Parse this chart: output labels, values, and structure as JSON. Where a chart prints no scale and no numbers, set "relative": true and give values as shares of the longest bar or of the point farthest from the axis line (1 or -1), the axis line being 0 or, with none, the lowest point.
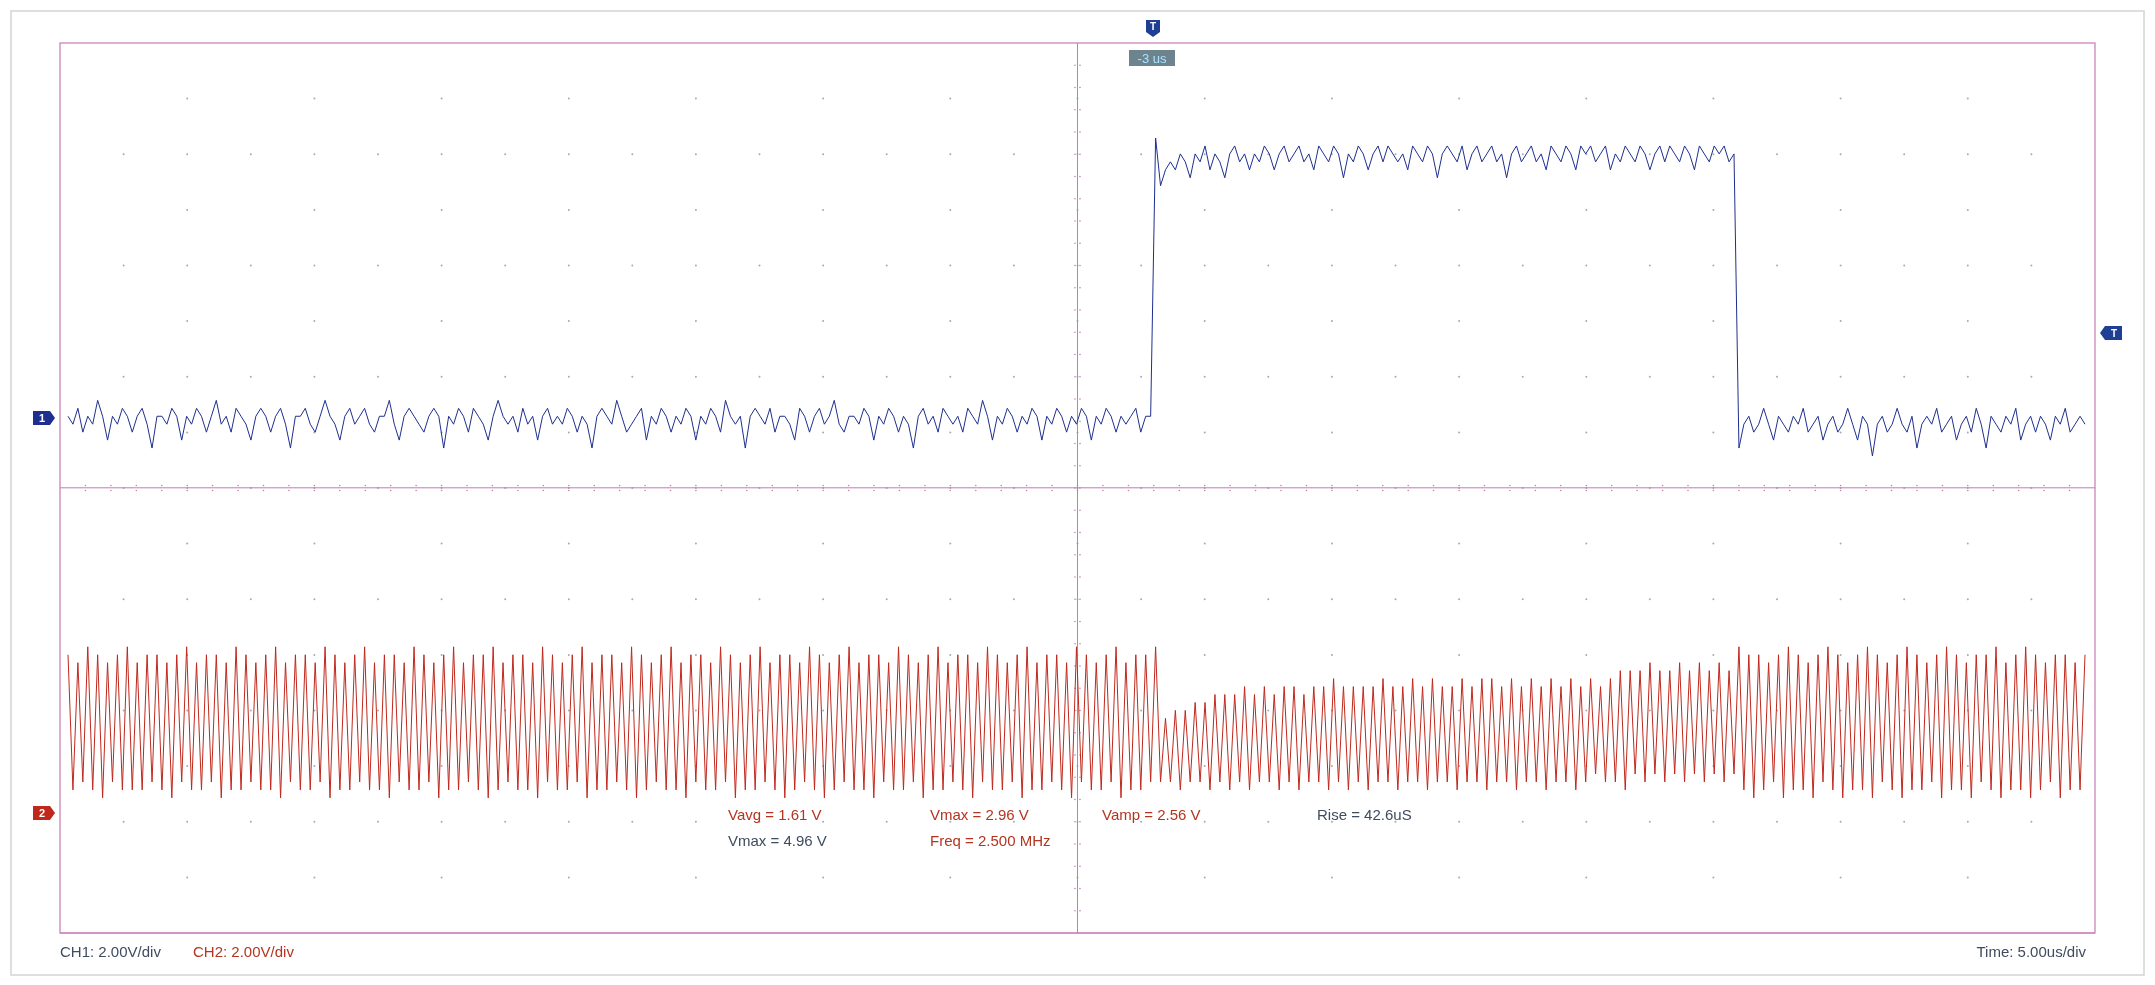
{
  "chart_data": {
    "type": "line",
    "relative": true,
    "marker": "none",
    "line_style": "solid",
    "ref_lines": [
      {
        "axis": "y",
        "value": 0.56,
        "color": "#c77ab6"
      }
    ],
    "annotations": [
      "T",
      "-3 us",
      "T",
      "Vavg = 1.61 V",
      "Vmax = 2.96 V",
      "Vamp = 2.56 V",
      "Rise = 42.6uS",
      "Vmax = 4.96 V",
      "Freq = 2.500 MHz",
      "CH1: 2.00V/div",
      "CH2: 2.00V/div",
      "Time: 5.00us/div"
    ],
    "categories": [
      null,
      null,
      null,
      null,
      null,
      null,
      null,
      null,
      null,
      null,
      null,
      null,
      null,
      null,
      null,
      null,
      null,
      null,
      null,
      null,
      null,
      null,
      null,
      null,
      null,
      null,
      null,
      null,
      null,
      null,
      null,
      null,
      null,
      null,
      null,
      null,
      null,
      null,
      null,
      null,
      null,
      null,
      null,
      null,
      null,
      null,
      null,
      null,
      null,
      null,
      null,
      null,
      null,
      null,
      null,
      null,
      null,
      null,
      null,
      null,
      null,
      null,
      null,
      null,
      null,
      null,
      null,
      null,
      null,
      null,
      null,
      null,
      null,
      null,
      null,
      null,
      null,
      null,
      null,
      null,
      null,
      null,
      null,
      null,
      null,
      null,
      null,
      null,
      null,
      null,
      null,
      null,
      null,
      null,
      null,
      null,
      null,
      null,
      null,
      null,
      null,
      null,
      null,
      null,
      null,
      null,
      null,
      null,
      null,
      null,
      null,
      null,
      null,
      null,
      null,
      null,
      null,
      null,
      null,
      null,
      null,
      null,
      null,
      null,
      null,
      null,
      null,
      null,
      null,
      null,
      null,
      null,
      null,
      null,
      null,
      null,
      null,
      null,
      null,
      null,
      null,
      null,
      null,
      null,
      null,
      null,
      null,
      null,
      null,
      null,
      null,
      null,
      null,
      null,
      null,
      null,
      null,
      null,
      null,
      null,
      null,
      null,
      null,
      null,
      null,
      null,
      null,
      null,
      null,
      null,
      null,
      null,
      null,
      null,
      null,
      null,
      null,
      null,
      null,
      null,
      null,
      null,
      null,
      null,
      null,
      null,
      null,
      null,
      null,
      null,
      null,
      null,
      null,
      null,
      null,
      null,
      null,
      null,
      null,
      null,
      null,
      null,
      null,
      null,
      null,
      null,
      null,
      null,
      null,
      null,
      null,
      null,
      null,
      null,
      null,
      null,
      null,
      null,
      null,
      null,
      null,
      null,
      null,
      null,
      null,
      null,
      null,
      null,
      null,
      null,
      null,
      null,
      null,
      null,
      null,
      null,
      null,
      null,
      null,
      null,
      null,
      null,
      null,
      null,
      null,
      null,
      null,
      null,
      null,
      null,
      null,
      null,
      null,
      null,
      null,
      null,
      null,
      null,
      null,
      null,
      null,
      null,
      null,
      null,
      null,
      null,
      null,
      null,
      null,
      null,
      null,
      null,
      null,
      null,
      null,
      null,
      null,
      null,
      null,
      null,
      null,
      null,
      null,
      null,
      null,
      null,
      null,
      null,
      null,
      null,
      null,
      null,
      null,
      null,
      null,
      null,
      null,
      null,
      null,
      null,
      null,
      null,
      null,
      null,
      null,
      null,
      null,
      null,
      null,
      null,
      null,
      null,
      null,
      null,
      null,
      null,
      null,
      null,
      null,
      null,
      null,
      null,
      null,
      null,
      null,
      null,
      null,
      null,
      null,
      null,
      null,
      null,
      null,
      null,
      null,
      null,
      null,
      null,
      null,
      null,
      null,
      null,
      null,
      null,
      null,
      null,
      null,
      null,
      null,
      null,
      null,
      null,
      null,
      null,
      null,
      null,
      null,
      null,
      null,
      null,
      null,
      null,
      null,
      null,
      null,
      null,
      null,
      null,
      null,
      null,
      null,
      null,
      null,
      null,
      null,
      null,
      null,
      null,
      null,
      null,
      null,
      null,
      null,
      null,
      null,
      null,
      null,
      null,
      null,
      null,
      null,
      null,
      null,
      null,
      null,
      null,
      null,
      null,
      null,
      null,
      null,
      null,
      null,
      null,
      null,
      null,
      null,
      null,
      null
    ],
    "series": [
      {
        "name": "1",
        "color": "#1e2f8f",
        "values": [
          0.65,
          0.64,
          0.66,
          0.63,
          0.65,
          0.64,
          0.67,
          0.65,
          0.62,
          0.65,
          0.64,
          0.66,
          0.65,
          0.63,
          0.65,
          0.66,
          0.64,
          0.61,
          0.65,
          0.65,
          0.64,
          0.66,
          0.65,
          0.62,
          0.65,
          0.64,
          0.66,
          0.65,
          0.63,
          0.65,
          0.67,
          0.64,
          0.65,
          0.63,
          0.66,
          0.65,
          0.64,
          0.62,
          0.65,
          0.66,
          0.65,
          0.63,
          0.65,
          0.66,
          0.64,
          0.61,
          0.65,
          0.65,
          0.66,
          0.64,
          0.63,
          0.65,
          0.67,
          0.65,
          0.64,
          0.62,
          0.65,
          0.66,
          0.64,
          0.65,
          0.66,
          0.64,
          0.63,
          0.65,
          0.65,
          0.67,
          0.64,
          0.62,
          0.65,
          0.66,
          0.65,
          0.64,
          0.63,
          0.65,
          0.66,
          0.65,
          0.61,
          0.65,
          0.64,
          0.66,
          0.65,
          0.63,
          0.66,
          0.65,
          0.64,
          0.62,
          0.65,
          0.67,
          0.65,
          0.64,
          0.65,
          0.63,
          0.66,
          0.64,
          0.65,
          0.62,
          0.65,
          0.66,
          0.64,
          0.65,
          0.64,
          0.66,
          0.65,
          0.63,
          0.65,
          0.64,
          0.61,
          0.65,
          0.66,
          0.65,
          0.64,
          0.67,
          0.65,
          0.63,
          0.64,
          0.65,
          0.66,
          0.62,
          0.65,
          0.64,
          0.66,
          0.65,
          0.63,
          0.65,
          0.64,
          0.66,
          0.65,
          0.62,
          0.65,
          0.64,
          0.66,
          0.65,
          0.63,
          0.67,
          0.65,
          0.64,
          0.65,
          0.61,
          0.65,
          0.66,
          0.65,
          0.64,
          0.66,
          0.63,
          0.65,
          0.65,
          0.64,
          0.62,
          0.66,
          0.65,
          0.63,
          0.65,
          0.66,
          0.64,
          0.65,
          0.67,
          0.64,
          0.63,
          0.65,
          0.65,
          0.64,
          0.66,
          0.65,
          0.62,
          0.65,
          0.64,
          0.66,
          0.65,
          0.63,
          0.65,
          0.64,
          0.61,
          0.65,
          0.66,
          0.64,
          0.65,
          0.63,
          0.66,
          0.65,
          0.64,
          0.65,
          0.63,
          0.66,
          0.65,
          0.64,
          0.67,
          0.65,
          0.62,
          0.65,
          0.64,
          0.66,
          0.65,
          0.63,
          0.65,
          0.64,
          0.66,
          0.65,
          0.62,
          0.65,
          0.64,
          0.66,
          0.65,
          0.63,
          0.65,
          0.64,
          0.66,
          0.65,
          0.62,
          0.65,
          0.64,
          0.66,
          0.65,
          0.63,
          0.65,
          0.64,
          0.65,
          0.66,
          0.63,
          0.65,
          0.65,
          1.0,
          0.94,
          0.96,
          0.97,
          0.96,
          0.98,
          0.97,
          0.95,
          0.98,
          0.97,
          0.99,
          0.96,
          0.98,
          0.97,
          0.95,
          0.98,
          0.99,
          0.97,
          0.98,
          0.96,
          0.98,
          0.97,
          0.99,
          0.98,
          0.96,
          0.98,
          0.99,
          0.97,
          0.98,
          0.99,
          0.97,
          0.98,
          0.96,
          0.99,
          0.98,
          0.97,
          0.99,
          0.98,
          0.95,
          0.98,
          0.97,
          0.99,
          0.98,
          0.96,
          0.98,
          0.99,
          0.97,
          0.99,
          0.98,
          0.97,
          0.98,
          0.96,
          0.99,
          0.98,
          0.97,
          0.99,
          0.98,
          0.95,
          0.98,
          0.99,
          0.98,
          0.97,
          0.99,
          0.96,
          0.98,
          0.99,
          0.97,
          0.98,
          0.99,
          0.97,
          0.98,
          0.95,
          0.98,
          0.99,
          0.97,
          0.98,
          0.99,
          0.97,
          0.98,
          0.96,
          0.99,
          0.98,
          0.97,
          0.99,
          0.98,
          0.96,
          0.99,
          0.98,
          0.99,
          0.97,
          0.98,
          0.99,
          0.96,
          0.98,
          0.97,
          0.99,
          0.98,
          0.97,
          0.99,
          0.98,
          0.96,
          0.98,
          0.99,
          0.97,
          0.99,
          0.98,
          0.97,
          0.99,
          0.98,
          0.96,
          0.99,
          0.98,
          0.97,
          0.99,
          0.98,
          0.99,
          0.97,
          0.98,
          0.61,
          0.64,
          0.65,
          0.63,
          0.64,
          0.66,
          0.64,
          0.62,
          0.65,
          0.64,
          0.63,
          0.65,
          0.64,
          0.66,
          0.63,
          0.64,
          0.65,
          0.62,
          0.64,
          0.65,
          0.63,
          0.64,
          0.66,
          0.64,
          0.62,
          0.65,
          0.64,
          0.6,
          0.64,
          0.65,
          0.63,
          0.64,
          0.66,
          0.64,
          0.63,
          0.65,
          0.61,
          0.64,
          0.65,
          0.64,
          0.66,
          0.63,
          0.64,
          0.65,
          0.62,
          0.64,
          0.65,
          0.63,
          0.66,
          0.64,
          0.61,
          0.65,
          0.64,
          0.63,
          0.65,
          0.64,
          0.66,
          0.62,
          0.64,
          0.65,
          0.63,
          0.65,
          0.64,
          0.62,
          0.65,
          0.64,
          0.66,
          0.63,
          0.64,
          0.65,
          0.64
        ]
      },
      {
        "name": "2",
        "color": "#c0281c",
        "values": [
          0.35,
          0.18,
          0.34,
          0.19,
          0.36,
          0.18,
          0.35,
          0.17,
          0.34,
          0.19,
          0.35,
          0.18,
          0.36,
          0.18,
          0.34,
          0.18,
          0.35,
          0.19,
          0.35,
          0.18,
          0.34,
          0.17,
          0.35,
          0.19,
          0.36,
          0.18,
          0.34,
          0.18,
          0.35,
          0.19,
          0.35,
          0.17,
          0.34,
          0.18,
          0.36,
          0.18,
          0.35,
          0.19,
          0.34,
          0.18,
          0.35,
          0.18,
          0.36,
          0.17,
          0.34,
          0.19,
          0.35,
          0.18,
          0.35,
          0.18,
          0.34,
          0.19,
          0.36,
          0.17,
          0.35,
          0.18,
          0.34,
          0.18,
          0.35,
          0.19,
          0.36,
          0.18,
          0.34,
          0.18,
          0.35,
          0.17,
          0.35,
          0.19,
          0.34,
          0.18,
          0.36,
          0.18,
          0.35,
          0.19,
          0.34,
          0.17,
          0.35,
          0.18,
          0.36,
          0.18,
          0.34,
          0.19,
          0.35,
          0.18,
          0.35,
          0.17,
          0.36,
          0.18,
          0.34,
          0.19,
          0.35,
          0.18,
          0.35,
          0.18,
          0.34,
          0.17,
          0.36,
          0.19,
          0.35,
          0.18,
          0.34,
          0.18,
          0.35,
          0.19,
          0.36,
          0.17,
          0.34,
          0.18,
          0.35,
          0.18,
          0.35,
          0.19,
          0.34,
          0.18,
          0.36,
          0.17,
          0.35,
          0.18,
          0.34,
          0.19,
          0.35,
          0.18,
          0.36,
          0.18,
          0.34,
          0.17,
          0.35,
          0.19,
          0.35,
          0.18,
          0.34,
          0.18,
          0.36,
          0.19,
          0.35,
          0.17,
          0.34,
          0.18,
          0.35,
          0.18,
          0.36,
          0.19,
          0.34,
          0.18,
          0.35,
          0.17,
          0.35,
          0.18,
          0.34,
          0.19,
          0.36,
          0.18,
          0.35,
          0.17,
          0.34,
          0.18,
          0.35,
          0.19,
          0.36,
          0.18,
          0.34,
          0.18,
          0.35,
          0.17,
          0.35,
          0.19,
          0.34,
          0.18,
          0.36,
          0.18,
          0.35,
          0.19,
          0.34,
          0.17,
          0.35,
          0.18,
          0.36,
          0.18,
          0.34,
          0.19,
          0.35,
          0.18,
          0.35,
          0.17,
          0.34,
          0.19,
          0.36,
          0.18,
          0.35,
          0.18,
          0.34,
          0.19,
          0.35,
          0.17,
          0.36,
          0.18,
          0.34,
          0.18,
          0.35,
          0.19,
          0.35,
          0.18,
          0.34,
          0.17,
          0.36,
          0.19,
          0.35,
          0.18,
          0.34,
          0.18,
          0.35,
          0.19,
          0.36,
          0.17,
          0.34,
          0.18,
          0.35,
          0.18,
          0.35,
          0.19,
          0.36,
          0.19,
          0.27,
          0.19,
          0.28,
          0.18,
          0.28,
          0.19,
          0.29,
          0.19,
          0.29,
          0.18,
          0.3,
          0.19,
          0.3,
          0.18,
          0.3,
          0.19,
          0.31,
          0.18,
          0.3,
          0.19,
          0.31,
          0.19,
          0.3,
          0.18,
          0.31,
          0.19,
          0.31,
          0.18,
          0.3,
          0.19,
          0.31,
          0.19,
          0.31,
          0.18,
          0.32,
          0.19,
          0.31,
          0.18,
          0.31,
          0.19,
          0.31,
          0.18,
          0.31,
          0.19,
          0.32,
          0.19,
          0.31,
          0.18,
          0.31,
          0.19,
          0.32,
          0.19,
          0.31,
          0.18,
          0.32,
          0.19,
          0.31,
          0.19,
          0.31,
          0.18,
          0.32,
          0.19,
          0.31,
          0.19,
          0.32,
          0.18,
          0.32,
          0.19,
          0.31,
          0.19,
          0.32,
          0.18,
          0.31,
          0.19,
          0.32,
          0.19,
          0.31,
          0.18,
          0.32,
          0.19,
          0.31,
          0.19,
          0.32,
          0.18,
          0.31,
          0.19,
          0.32,
          0.2,
          0.31,
          0.19,
          0.32,
          0.19,
          0.33,
          0.18,
          0.33,
          0.2,
          0.33,
          0.19,
          0.34,
          0.2,
          0.33,
          0.19,
          0.33,
          0.2,
          0.34,
          0.19,
          0.33,
          0.2,
          0.34,
          0.19,
          0.33,
          0.2,
          0.34,
          0.19,
          0.33,
          0.2,
          0.36,
          0.18,
          0.35,
          0.17,
          0.35,
          0.18,
          0.34,
          0.19,
          0.35,
          0.17,
          0.36,
          0.18,
          0.35,
          0.18,
          0.34,
          0.17,
          0.35,
          0.19,
          0.36,
          0.18,
          0.35,
          0.17,
          0.34,
          0.18,
          0.35,
          0.18,
          0.36,
          0.17,
          0.35,
          0.19,
          0.34,
          0.18,
          0.35,
          0.17,
          0.36,
          0.18,
          0.35,
          0.18,
          0.34,
          0.19,
          0.35,
          0.17,
          0.36,
          0.18,
          0.35,
          0.18,
          0.34,
          0.17,
          0.35,
          0.19,
          0.35,
          0.18,
          0.36,
          0.17,
          0.34,
          0.18,
          0.35,
          0.18,
          0.36,
          0.17,
          0.35,
          0.18,
          0.34,
          0.19,
          0.35,
          0.17,
          0.35,
          0.18,
          0.34,
          0.18,
          0.35
        ]
      }
    ]
  }
}
